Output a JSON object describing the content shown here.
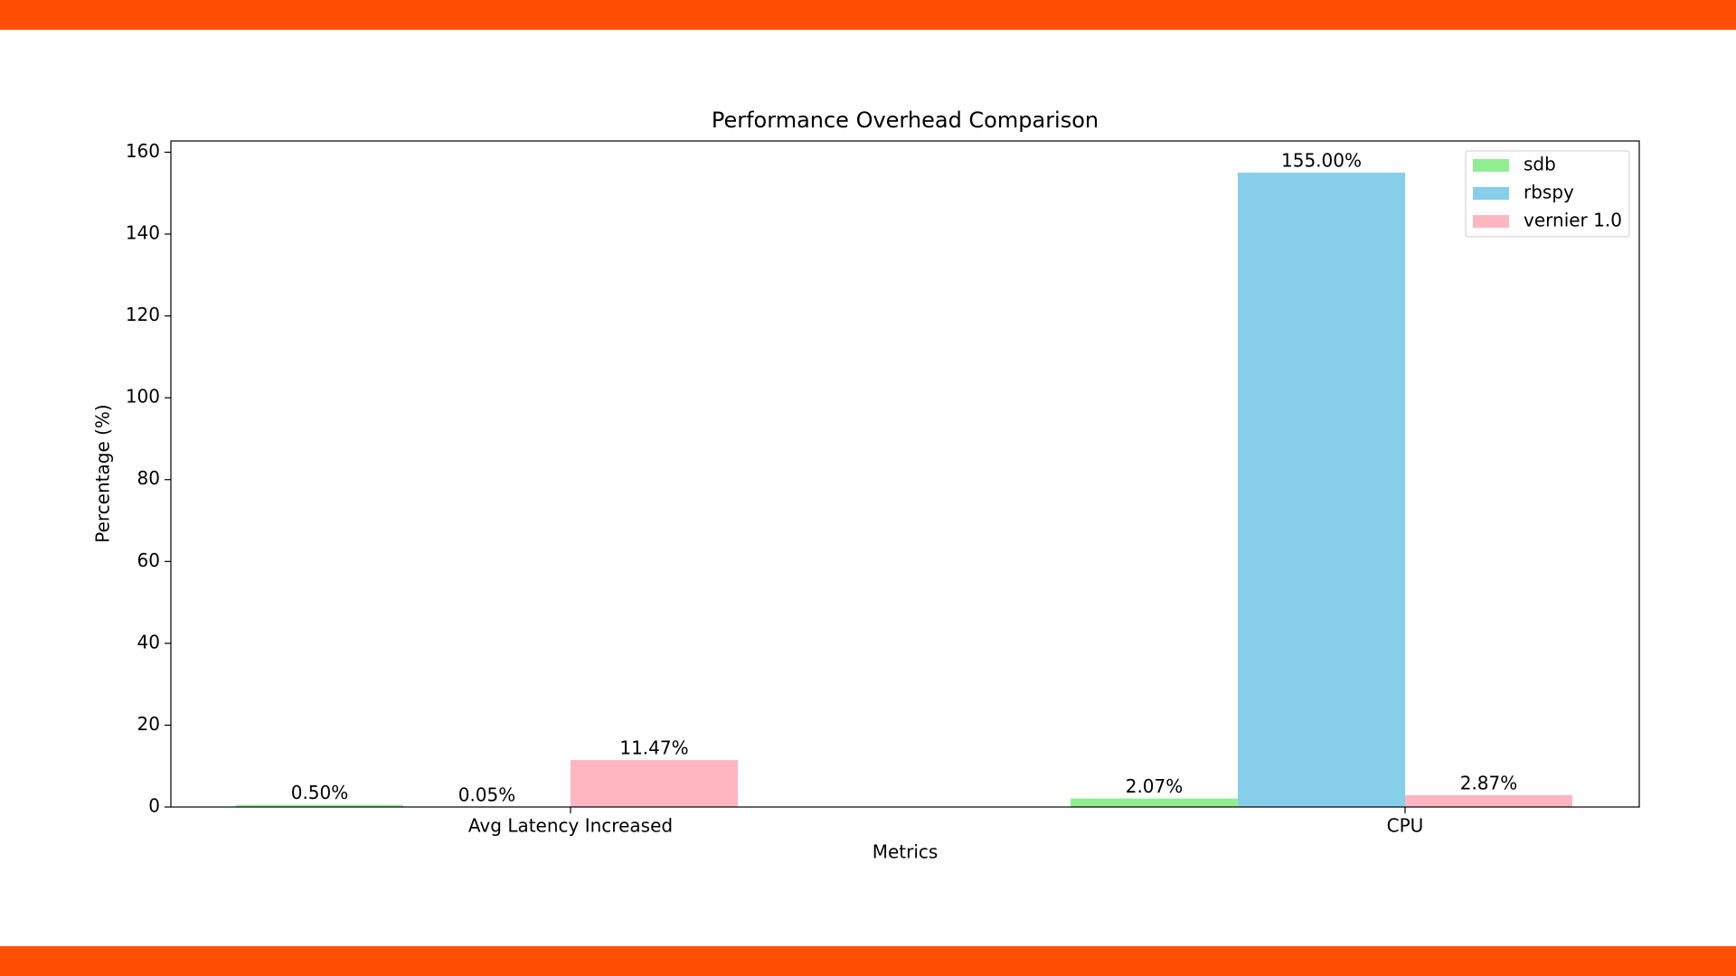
{
  "chart_data": {
    "type": "bar",
    "title": "Performance Overhead Comparison",
    "x_label": "Metrics",
    "y_label": "Percentage (%)",
    "categories": [
      "Avg Latency Increased",
      "CPU"
    ],
    "series": [
      {
        "name": "sdb",
        "color": "#90ee90",
        "values": [
          0.5,
          2.07
        ],
        "value_labels": [
          "0.50%",
          "2.07%"
        ]
      },
      {
        "name": "rbspy",
        "color": "#87ceeb",
        "values": [
          0.05,
          155
        ],
        "value_labels": [
          "0.05%",
          "155.00%"
        ]
      },
      {
        "name": "vernier 1.0",
        "color": "#ffb6c1",
        "values": [
          11.47,
          2.87
        ],
        "value_labels": [
          "11.47%",
          "2.87%"
        ]
      }
    ],
    "ylim": [
      0,
      162.75
    ],
    "yticks": [
      0,
      20,
      40,
      60,
      80,
      100,
      120,
      140,
      160
    ],
    "legend": "upper right",
    "grid": false
  }
}
